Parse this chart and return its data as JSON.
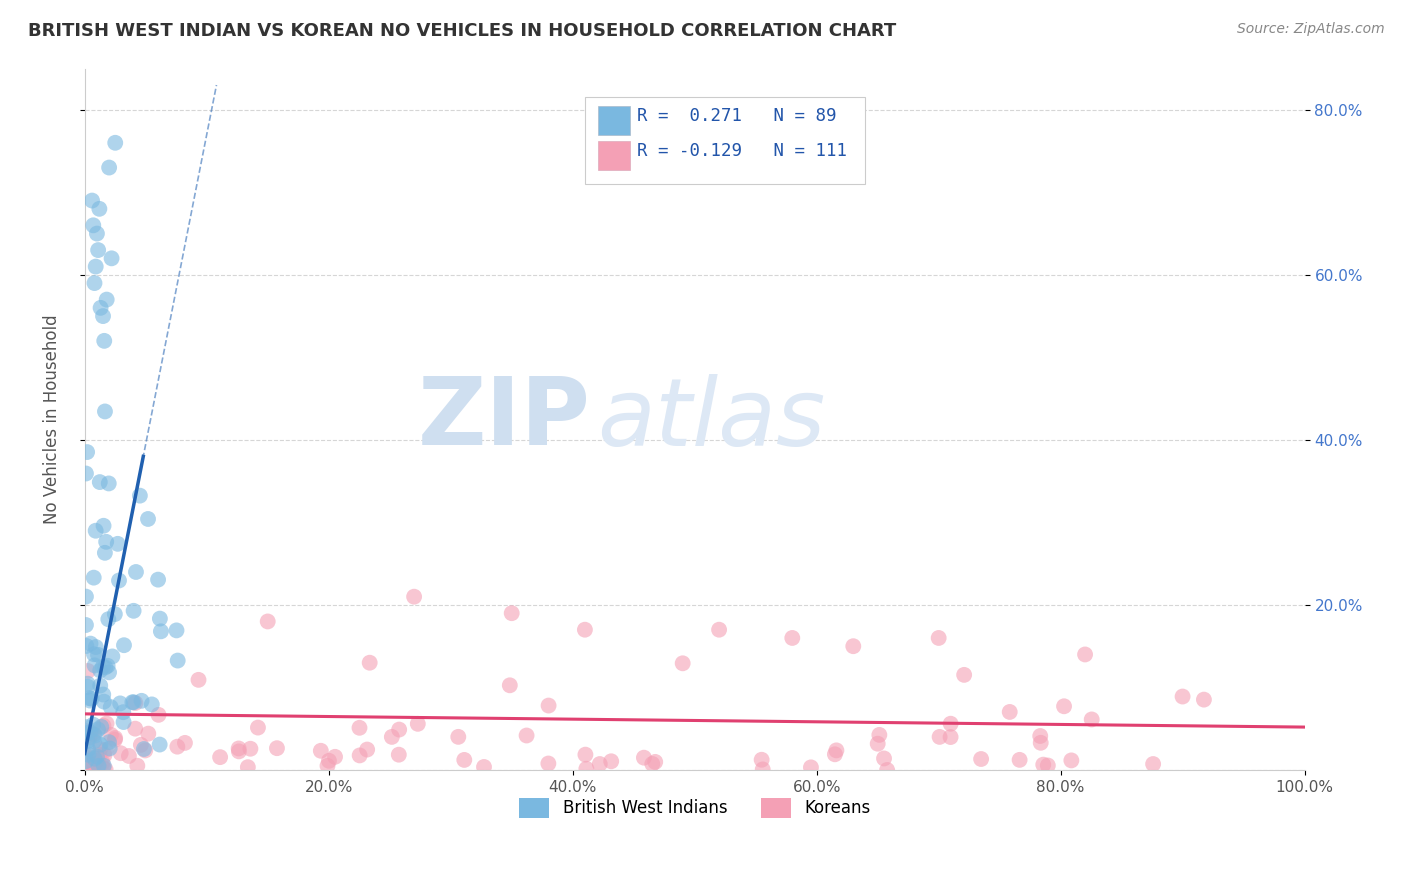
{
  "title": "BRITISH WEST INDIAN VS KOREAN NO VEHICLES IN HOUSEHOLD CORRELATION CHART",
  "source": "Source: ZipAtlas.com",
  "ylabel": "No Vehicles in Household",
  "xlabel": "",
  "xlim": [
    0,
    1.0
  ],
  "ylim": [
    0,
    0.85
  ],
  "x_ticks": [
    0.0,
    0.2,
    0.4,
    0.6,
    0.8,
    1.0
  ],
  "x_tick_labels": [
    "0.0%",
    "20.0%",
    "40.0%",
    "60.0%",
    "80.0%",
    "100.0%"
  ],
  "y_ticks": [
    0.2,
    0.4,
    0.6,
    0.8
  ],
  "y_tick_labels": [
    "20.0%",
    "40.0%",
    "60.0%",
    "80.0%"
  ],
  "blue_R": 0.271,
  "blue_N": 89,
  "pink_R": -0.129,
  "pink_N": 111,
  "blue_color": "#7ab8e0",
  "pink_color": "#f4a0b5",
  "blue_line_color": "#2060b0",
  "pink_line_color": "#e04070",
  "background_color": "#ffffff",
  "grid_color": "#cccccc",
  "title_color": "#333333",
  "watermark_main": "ZIP",
  "watermark_secondary": "atlas",
  "legend_label_blue": "British West Indians",
  "legend_label_pink": "Koreans"
}
